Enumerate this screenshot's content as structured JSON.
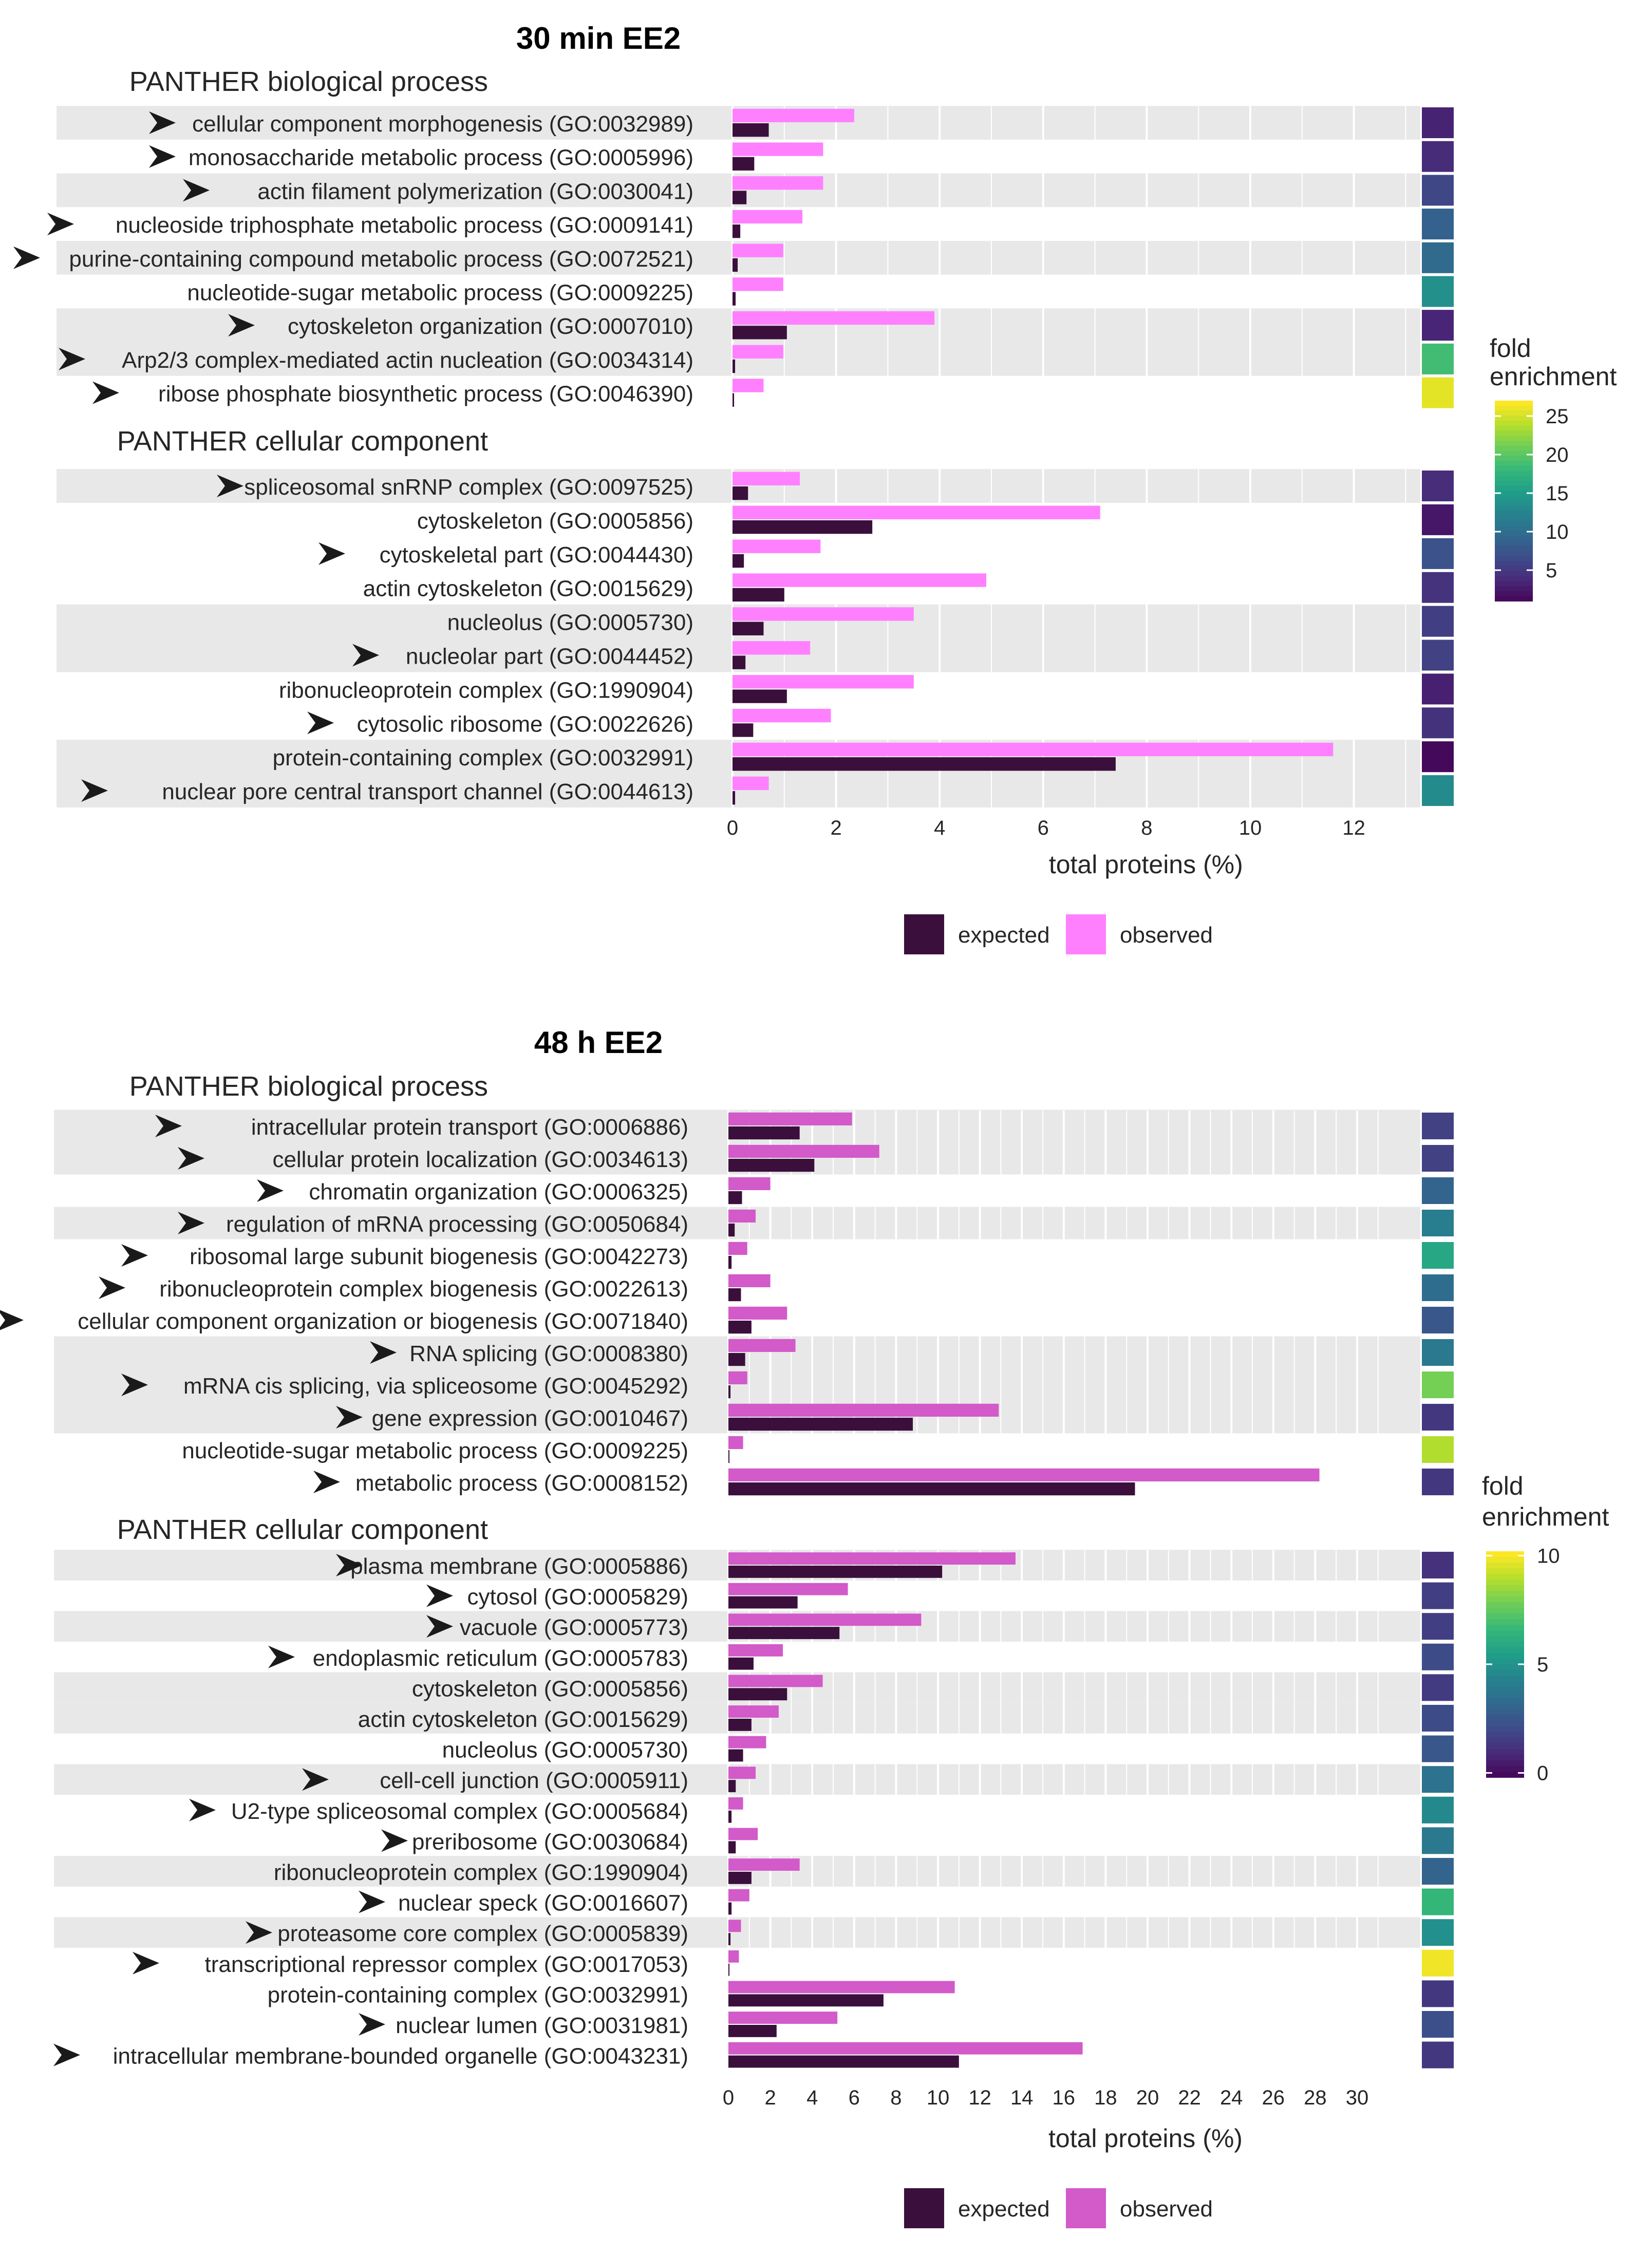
{
  "colors": {
    "expected": "#3b0f3c",
    "observed_top": "#ff80ff",
    "observed_bottom": "#d25ac9",
    "band": "#e8e8e8",
    "grid": "#ffffff",
    "viridis": [
      "#440154",
      "#482878",
      "#3e4a89",
      "#31688e",
      "#26828e",
      "#1f9e89",
      "#35b779",
      "#6dcd59",
      "#b4de2c",
      "#fde725"
    ]
  },
  "chart_data": [
    {
      "type": "bar",
      "title": "30 min EE2",
      "xlabel": "total proteins (%)",
      "xlim": [
        -0.1,
        13.4
      ],
      "xticks": [
        0,
        2,
        4,
        6,
        8,
        10,
        12
      ],
      "legend": {
        "labels": [
          "expected",
          "observed"
        ],
        "position": "bottom"
      },
      "colorbar": {
        "title": [
          "fold",
          "enrichment"
        ],
        "ticks": [
          5,
          10,
          15,
          20,
          25
        ],
        "range": [
          1,
          27
        ]
      },
      "panels": [
        {
          "name": "PANTHER biological process",
          "categories": [
            {
              "label": "cellular component morphogenesis (GO:0032989)",
              "arrow": true,
              "band": true,
              "expected": 0.7,
              "observed": 2.35,
              "fold": 3.5
            },
            {
              "label": "monosaccharide metabolic process (GO:0005996)",
              "arrow": true,
              "band": false,
              "expected": 0.42,
              "observed": 1.75,
              "fold": 4.2
            },
            {
              "label": "actin filament polymerization (GO:0030041)",
              "arrow": true,
              "band": true,
              "expected": 0.27,
              "observed": 1.75,
              "fold": 6.5
            },
            {
              "label": "nucleoside triphosphate metabolic process (GO:0009141)",
              "arrow": true,
              "band": false,
              "expected": 0.15,
              "observed": 1.35,
              "fold": 9
            },
            {
              "label": "purine-containing compound metabolic process (GO:0072521)",
              "arrow": true,
              "band": true,
              "expected": 0.1,
              "observed": 0.98,
              "fold": 10
            },
            {
              "label": "nucleotide-sugar metabolic process (GO:0009225)",
              "arrow": false,
              "band": false,
              "expected": 0.06,
              "observed": 0.98,
              "fold": 14
            },
            {
              "label": "cytoskeleton organization (GO:0007010)",
              "arrow": true,
              "band": true,
              "expected": 1.05,
              "observed": 3.9,
              "fold": 3.7
            },
            {
              "label": "Arp2/3 complex-mediated actin nucleation (GO:0034314)",
              "arrow": true,
              "band": true,
              "expected": 0.05,
              "observed": 0.98,
              "fold": 19
            },
            {
              "label": "ribose phosphate biosynthetic process (GO:0046390)",
              "arrow": true,
              "band": false,
              "expected": 0.03,
              "observed": 0.6,
              "fold": 26
            }
          ]
        },
        {
          "name": "PANTHER cellular component",
          "categories": [
            {
              "label": "spliceosomal snRNP complex (GO:0097525)",
              "arrow": true,
              "band": true,
              "expected": 0.3,
              "observed": 1.3,
              "fold": 4.3
            },
            {
              "label": "cytoskeleton (GO:0005856)",
              "arrow": false,
              "band": false,
              "expected": 2.7,
              "observed": 7.1,
              "fold": 2.6
            },
            {
              "label": "cytoskeletal part (GO:0044430)",
              "arrow": true,
              "band": false,
              "expected": 0.22,
              "observed": 1.7,
              "fold": 7.5
            },
            {
              "label": "actin cytoskeleton (GO:0015629)",
              "arrow": false,
              "band": false,
              "expected": 1.0,
              "observed": 4.9,
              "fold": 4.8
            },
            {
              "label": "nucleolus (GO:0005730)",
              "arrow": false,
              "band": true,
              "expected": 0.6,
              "observed": 3.5,
              "fold": 5.8
            },
            {
              "label": "nucleolar part (GO:0044452)",
              "arrow": true,
              "band": true,
              "expected": 0.25,
              "observed": 1.5,
              "fold": 6
            },
            {
              "label": "ribonucleoprotein complex (GO:1990904)",
              "arrow": false,
              "band": false,
              "expected": 1.05,
              "observed": 3.5,
              "fold": 3.3
            },
            {
              "label": "cytosolic ribosome (GO:0022626)",
              "arrow": true,
              "band": false,
              "expected": 0.4,
              "observed": 1.9,
              "fold": 4.7
            },
            {
              "label": "protein-containing complex (GO:0032991)",
              "arrow": false,
              "band": true,
              "expected": 7.4,
              "observed": 11.6,
              "fold": 1.6
            },
            {
              "label": "nuclear pore central transport channel (GO:0044613)",
              "arrow": true,
              "band": true,
              "expected": 0.05,
              "observed": 0.7,
              "fold": 13.5
            }
          ]
        }
      ]
    },
    {
      "type": "bar",
      "title": "48 h EE2",
      "xlabel": "total proteins (%)",
      "xlim": [
        -0.1,
        33.5
      ],
      "xticks": [
        0,
        2,
        4,
        6,
        8,
        10,
        12,
        14,
        16,
        18,
        20,
        22,
        24,
        26,
        28,
        30
      ],
      "legend": {
        "labels": [
          "expected",
          "observed"
        ],
        "position": "bottom"
      },
      "colorbar": {
        "title": [
          "fold",
          "enrichment"
        ],
        "ticks": [
          0,
          5,
          10
        ],
        "range": [
          -0.2,
          10.2
        ]
      },
      "panels": [
        {
          "name": "PANTHER biological process",
          "categories": [
            {
              "label": "intracellular protein transport (GO:0006886)",
              "arrow": true,
              "band": true,
              "expected": 3.4,
              "observed": 5.9,
              "fold": 1.8
            },
            {
              "label": "cellular protein localization (GO:0034613)",
              "arrow": true,
              "band": true,
              "expected": 4.1,
              "observed": 7.2,
              "fold": 1.8
            },
            {
              "label": "chromatin organization (GO:0006325)",
              "arrow": true,
              "band": false,
              "expected": 0.65,
              "observed": 2.0,
              "fold": 3.1
            },
            {
              "label": "regulation of mRNA processing (GO:0050684)",
              "arrow": true,
              "band": true,
              "expected": 0.3,
              "observed": 1.3,
              "fold": 4.2
            },
            {
              "label": "ribosomal large subunit biogenesis (GO:0042273)",
              "arrow": true,
              "band": false,
              "expected": 0.15,
              "observed": 0.9,
              "fold": 6
            },
            {
              "label": "ribonucleoprotein complex biogenesis (GO:0022613)",
              "arrow": true,
              "band": false,
              "expected": 0.6,
              "observed": 2.0,
              "fold": 3.5
            },
            {
              "label": "cellular component organization or biogenesis (GO:0071840)",
              "arrow": true,
              "band": false,
              "expected": 1.1,
              "observed": 2.8,
              "fold": 2.6
            },
            {
              "label": "RNA splicing (GO:0008380)",
              "arrow": true,
              "band": true,
              "expected": 0.8,
              "observed": 3.2,
              "fold": 4
            },
            {
              "label": "mRNA cis splicing, via spliceosome (GO:0045292)",
              "arrow": true,
              "band": true,
              "expected": 0.1,
              "observed": 0.9,
              "fold": 8
            },
            {
              "label": "gene expression (GO:0010467)",
              "arrow": true,
              "band": true,
              "expected": 8.8,
              "observed": 12.9,
              "fold": 1.5
            },
            {
              "label": "nucleotide-sugar metabolic process (GO:0009225)",
              "arrow": false,
              "band": false,
              "expected": 0.05,
              "observed": 0.7,
              "fold": 9
            },
            {
              "label": "metabolic process (GO:0008152)",
              "arrow": true,
              "band": false,
              "expected": 19.4,
              "observed": 28.2,
              "fold": 1.5
            }
          ]
        },
        {
          "name": "PANTHER cellular component",
          "categories": [
            {
              "label": "plasma membrane (GO:0005886)",
              "arrow": true,
              "band": true,
              "expected": 10.2,
              "observed": 13.7,
              "fold": 1.3
            },
            {
              "label": "cytosol (GO:0005829)",
              "arrow": true,
              "band": false,
              "expected": 3.3,
              "observed": 5.7,
              "fold": 1.7
            },
            {
              "label": "vacuole (GO:0005773)",
              "arrow": true,
              "band": true,
              "expected": 5.3,
              "observed": 9.2,
              "fold": 1.7
            },
            {
              "label": "endoplasmic reticulum (GO:0005783)",
              "arrow": true,
              "band": false,
              "expected": 1.2,
              "observed": 2.6,
              "fold": 2.2
            },
            {
              "label": "cytoskeleton (GO:0005856)",
              "arrow": false,
              "band": true,
              "expected": 2.8,
              "observed": 4.5,
              "fold": 1.6
            },
            {
              "label": "actin cytoskeleton (GO:0015629)",
              "arrow": false,
              "band": true,
              "expected": 1.1,
              "observed": 2.4,
              "fold": 2.2
            },
            {
              "label": "nucleolus (GO:0005730)",
              "arrow": false,
              "band": false,
              "expected": 0.7,
              "observed": 1.8,
              "fold": 2.6
            },
            {
              "label": "cell-cell junction (GO:0005911)",
              "arrow": true,
              "band": true,
              "expected": 0.35,
              "observed": 1.3,
              "fold": 3.7
            },
            {
              "label": "U2-type spliceosomal complex (GO:0005684)",
              "arrow": true,
              "band": false,
              "expected": 0.15,
              "observed": 0.7,
              "fold": 4.7
            },
            {
              "label": "preribosome (GO:0030684)",
              "arrow": true,
              "band": false,
              "expected": 0.35,
              "observed": 1.4,
              "fold": 4
            },
            {
              "label": "ribonucleoprotein complex (GO:1990904)",
              "arrow": false,
              "band": true,
              "expected": 1.1,
              "observed": 3.4,
              "fold": 3.1
            },
            {
              "label": "nuclear speck (GO:0016607)",
              "arrow": true,
              "band": false,
              "expected": 0.15,
              "observed": 1.0,
              "fold": 6.7
            },
            {
              "label": "proteasome core complex (GO:0005839)",
              "arrow": true,
              "band": true,
              "expected": 0.1,
              "observed": 0.6,
              "fold": 5
            },
            {
              "label": "transcriptional repressor complex (GO:0017053)",
              "arrow": true,
              "band": false,
              "expected": 0.05,
              "observed": 0.5,
              "fold": 10
            },
            {
              "label": "protein-containing complex (GO:0032991)",
              "arrow": false,
              "band": false,
              "expected": 7.4,
              "observed": 10.8,
              "fold": 1.5
            },
            {
              "label": "nuclear lumen (GO:0031981)",
              "arrow": true,
              "band": false,
              "expected": 2.3,
              "observed": 5.2,
              "fold": 2.3
            },
            {
              "label": "intracellular membrane-bounded organelle (GO:0043231)",
              "arrow": true,
              "band": false,
              "expected": 11.0,
              "observed": 16.9,
              "fold": 1.5
            }
          ]
        }
      ]
    }
  ]
}
